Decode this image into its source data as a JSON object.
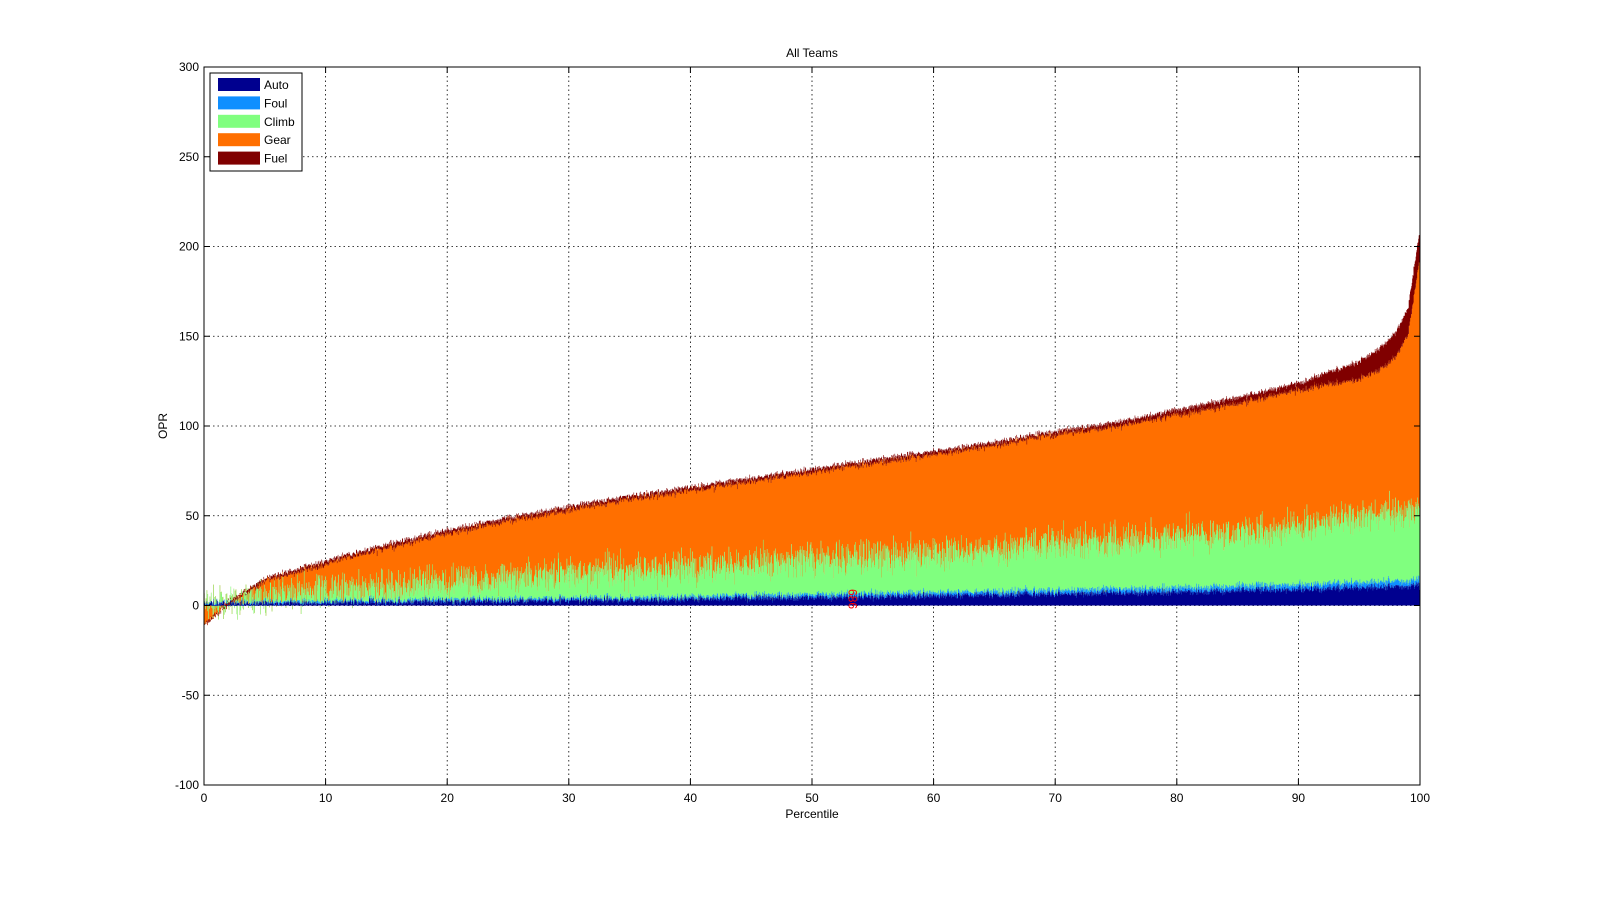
{
  "chart_data": {
    "type": "bar",
    "stacked": true,
    "title": "All Teams",
    "xlabel": "Percentile",
    "ylabel": "OPR",
    "xlim": [
      0,
      100
    ],
    "ylim": [
      -100,
      300
    ],
    "xticks": [
      0,
      10,
      20,
      30,
      40,
      50,
      60,
      70,
      80,
      90,
      100
    ],
    "yticks": [
      -100,
      -50,
      0,
      50,
      100,
      150,
      200,
      250,
      300
    ],
    "grid": true,
    "legend_position": "top-left",
    "team_count": 2800,
    "series": [
      {
        "name": "Auto",
        "color": "#00008f",
        "profile": {
          "x": [
            0,
            10,
            25,
            40,
            50,
            60,
            70,
            80,
            90,
            100
          ],
          "y": [
            0.5,
            1.5,
            2.5,
            3.5,
            4.5,
            5.5,
            6.5,
            7.5,
            9,
            11
          ]
        }
      },
      {
        "name": "Foul",
        "color": "#0f8fff",
        "profile": {
          "x": [
            0,
            10,
            25,
            40,
            50,
            60,
            70,
            80,
            90,
            100
          ],
          "y": [
            0.5,
            0.8,
            1,
            1.2,
            1.5,
            1.7,
            2,
            2.2,
            2.6,
            3
          ]
        }
      },
      {
        "name": "Climb",
        "color": "#80ff7f",
        "profile": {
          "x": [
            0,
            10,
            25,
            40,
            50,
            60,
            70,
            80,
            90,
            100
          ],
          "y": [
            0,
            6,
            12,
            17,
            20,
            22,
            26,
            28,
            32,
            40
          ]
        }
      },
      {
        "name": "Gear",
        "color": "#ff6f00",
        "profile": {
          "x": [
            0,
            10,
            25,
            40,
            50,
            60,
            70,
            80,
            90,
            100
          ],
          "y": [
            -10,
            15,
            33,
            45,
            52,
            58,
            63,
            70,
            77,
            140
          ]
        }
      },
      {
        "name": "Fuel",
        "color": "#800000",
        "profile": {
          "x": [
            0,
            10,
            25,
            40,
            50,
            60,
            70,
            80,
            90,
            100
          ],
          "y": [
            0,
            1,
            1,
            1,
            1,
            1,
            1,
            2,
            3,
            15
          ]
        }
      }
    ],
    "total_profile": {
      "x": [
        0,
        1,
        2,
        5,
        10,
        15,
        20,
        25,
        30,
        35,
        40,
        45,
        50,
        55,
        60,
        65,
        70,
        75,
        80,
        85,
        90,
        95,
        97,
        98,
        99,
        100
      ],
      "y": [
        -10,
        -5,
        2,
        15,
        25,
        34,
        42,
        49,
        55,
        61,
        66,
        71,
        76,
        81,
        86,
        91,
        97,
        102,
        109,
        116,
        124,
        136,
        145,
        152,
        165,
        210
      ]
    },
    "annotations": [
      {
        "text": "686",
        "x": 53,
        "y": -2,
        "rotation": -90
      }
    ]
  }
}
